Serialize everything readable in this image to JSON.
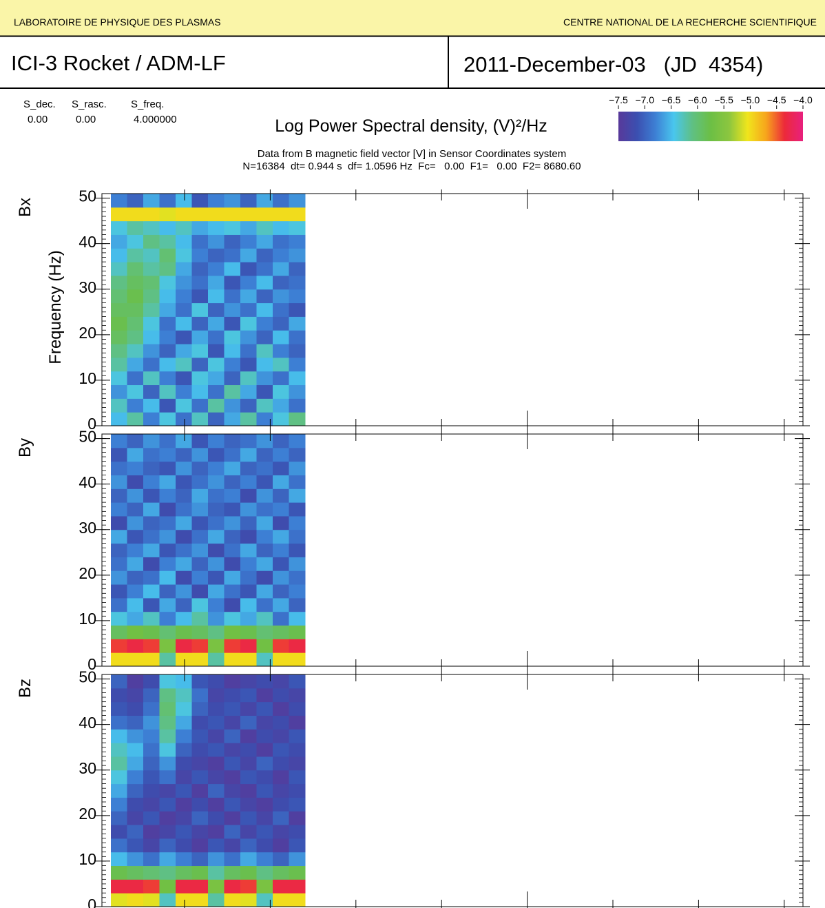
{
  "header": {
    "left": "LABORATOIRE DE PHYSIQUE DES PLASMAS",
    "right": "CENTRE NATIONAL DE LA RECHERCHE SCIENTIFIQUE",
    "title": "ICI-3 Rocket / ADM-LF",
    "date": "2011-December-03   (JD  4354)"
  },
  "params": [
    {
      "name": "S_dec.",
      "value": "0.00"
    },
    {
      "name": "S_rasc.",
      "value": "0.00"
    },
    {
      "name": "S_freq.",
      "value": "4.000000"
    }
  ],
  "colorbar": {
    "title": "Log Power Spectral density, (V)²/Hz",
    "clim": [
      -7.5,
      -4.0
    ],
    "ticks": [
      {
        "value": -7.5,
        "label": "−7.5"
      },
      {
        "value": -7.0,
        "label": "−7.0"
      },
      {
        "value": -6.5,
        "label": "−6.5"
      },
      {
        "value": -6.0,
        "label": "−6.0"
      },
      {
        "value": -5.5,
        "label": "−5.5"
      },
      {
        "value": -5.0,
        "label": "−5.0"
      },
      {
        "value": -4.5,
        "label": "−4.5"
      },
      {
        "value": -4.0,
        "label": "−4.0"
      }
    ],
    "colors": [
      "#58399a",
      "#3b4fb0",
      "#3d7fd4",
      "#49c6ee",
      "#5fc084",
      "#6cbf45",
      "#8cc63f",
      "#f0e51c",
      "#f7a51c",
      "#ec2a3a",
      "#e8207e"
    ]
  },
  "info": [
    "Data from B magnetic field vector [V] in Sensor Coordinates system",
    "N=16384  dt= 0.944 s  df= 1.0596 Hz  Fc=   0.00  F1=   0.00  F2= 8680.60"
  ],
  "chart_data": [
    {
      "type": "heatmap",
      "name": "Bx",
      "name_color": "#e8303a",
      "ylabel": "Frequency (Hz)",
      "ylim": [
        0,
        51
      ],
      "yticks": [
        0,
        10,
        20,
        30,
        40,
        50
      ],
      "ybins": [
        0,
        3,
        6,
        9,
        12,
        15,
        18,
        21,
        24,
        27,
        30,
        33,
        36,
        39,
        42,
        45,
        48,
        51
      ],
      "z": [
        [
          -6.5,
          -6.2,
          -6.8,
          -6.4,
          -6.9,
          -6.3,
          -7.0,
          -6.6,
          -6.2,
          -6.8,
          -6.4,
          -6.1
        ],
        [
          -6.3,
          -6.8,
          -6.5,
          -7.1,
          -6.4,
          -6.9,
          -6.2,
          -6.7,
          -7.0,
          -6.3,
          -6.6,
          -6.9
        ],
        [
          -6.7,
          -6.4,
          -7.0,
          -6.3,
          -6.8,
          -6.5,
          -6.9,
          -6.2,
          -6.6,
          -7.1,
          -6.4,
          -6.7
        ],
        [
          -6.4,
          -6.9,
          -6.3,
          -6.8,
          -7.1,
          -6.4,
          -6.6,
          -7.0,
          -6.3,
          -6.7,
          -6.9,
          -6.5
        ],
        [
          -6.2,
          -6.6,
          -6.9,
          -6.5,
          -6.3,
          -7.0,
          -6.4,
          -6.8,
          -7.1,
          -6.5,
          -6.3,
          -6.8
        ],
        [
          -6.1,
          -6.3,
          -6.7,
          -7.0,
          -6.6,
          -6.4,
          -7.1,
          -6.5,
          -6.9,
          -6.3,
          -6.8,
          -7.0
        ],
        [
          -5.9,
          -6.1,
          -6.5,
          -6.8,
          -7.1,
          -6.6,
          -6.9,
          -6.4,
          -6.7,
          -7.0,
          -6.5,
          -6.9
        ],
        [
          -5.8,
          -6.0,
          -6.4,
          -6.9,
          -6.5,
          -7.0,
          -6.6,
          -7.1,
          -6.4,
          -6.8,
          -7.0,
          -6.6
        ],
        [
          -5.9,
          -5.9,
          -6.2,
          -6.6,
          -6.9,
          -6.4,
          -7.0,
          -6.7,
          -6.9,
          -6.5,
          -6.9,
          -7.1
        ],
        [
          -6.0,
          -5.8,
          -6.1,
          -6.5,
          -6.8,
          -7.1,
          -6.5,
          -6.9,
          -6.6,
          -7.0,
          -6.7,
          -6.8
        ],
        [
          -6.1,
          -5.9,
          -6.0,
          -6.4,
          -6.7,
          -6.9,
          -6.6,
          -7.1,
          -6.8,
          -6.5,
          -7.0,
          -6.9
        ],
        [
          -6.3,
          -6.0,
          -6.2,
          -6.1,
          -6.6,
          -7.0,
          -6.8,
          -6.5,
          -7.1,
          -6.9,
          -6.6,
          -7.0
        ],
        [
          -6.5,
          -6.2,
          -6.3,
          -6.0,
          -6.4,
          -6.8,
          -7.0,
          -6.9,
          -6.6,
          -7.0,
          -6.8,
          -6.7
        ],
        [
          -6.6,
          -6.4,
          -6.1,
          -6.2,
          -6.5,
          -6.9,
          -6.7,
          -7.0,
          -6.8,
          -6.6,
          -6.9,
          -6.8
        ],
        [
          -6.4,
          -6.2,
          -6.3,
          -6.5,
          -6.3,
          -6.6,
          -6.5,
          -6.4,
          -6.6,
          -6.3,
          -6.5,
          -6.4
        ],
        [
          -5.0,
          -5.0,
          -5.0,
          -5.1,
          -5.0,
          -5.0,
          -5.0,
          -5.0,
          -5.0,
          -5.0,
          -5.0,
          -5.0
        ],
        [
          -6.8,
          -7.0,
          -6.6,
          -6.9,
          -6.5,
          -7.1,
          -6.8,
          -6.7,
          -7.0,
          -6.6,
          -6.9,
          -6.7
        ]
      ]
    },
    {
      "type": "heatmap",
      "name": "By",
      "name_color": "#6cbf45",
      "ylim": [
        0,
        51
      ],
      "yticks": [
        0,
        10,
        20,
        30,
        40,
        50
      ],
      "ybins": [
        0,
        3,
        6,
        9,
        12,
        15,
        18,
        21,
        24,
        27,
        30,
        33,
        36,
        39,
        42,
        45,
        48,
        51
      ],
      "z": [
        [
          -5.0,
          -5.0,
          -5.0,
          -6.2,
          -5.0,
          -5.0,
          -6.2,
          -5.0,
          -5.0,
          -6.3,
          -5.0,
          -5.0
        ],
        [
          -4.4,
          -4.3,
          -4.4,
          -5.6,
          -4.3,
          -4.4,
          -5.6,
          -4.4,
          -4.3,
          -5.7,
          -4.4,
          -4.3
        ],
        [
          -5.9,
          -5.7,
          -5.8,
          -6.0,
          -5.8,
          -5.9,
          -6.1,
          -5.7,
          -5.8,
          -6.0,
          -5.9,
          -5.8
        ],
        [
          -6.4,
          -6.6,
          -6.3,
          -6.8,
          -6.5,
          -6.2,
          -6.7,
          -6.4,
          -6.6,
          -6.3,
          -6.9,
          -6.5
        ],
        [
          -6.9,
          -6.5,
          -7.1,
          -6.6,
          -7.0,
          -6.4,
          -6.8,
          -7.2,
          -6.5,
          -6.9,
          -6.6,
          -7.0
        ],
        [
          -7.1,
          -6.8,
          -6.5,
          -7.0,
          -6.7,
          -7.2,
          -6.6,
          -6.9,
          -7.1,
          -6.6,
          -7.0,
          -6.8
        ],
        [
          -6.7,
          -7.0,
          -6.9,
          -6.5,
          -7.2,
          -6.8,
          -7.1,
          -6.6,
          -6.9,
          -7.2,
          -6.7,
          -6.9
        ],
        [
          -6.9,
          -6.6,
          -7.2,
          -6.8,
          -6.6,
          -7.0,
          -6.7,
          -7.2,
          -6.8,
          -6.6,
          -7.1,
          -6.7
        ],
        [
          -7.0,
          -6.8,
          -6.6,
          -7.1,
          -6.9,
          -6.7,
          -7.2,
          -6.9,
          -6.6,
          -7.0,
          -6.8,
          -7.1
        ],
        [
          -6.6,
          -7.1,
          -6.9,
          -6.7,
          -7.2,
          -6.9,
          -6.6,
          -7.0,
          -7.2,
          -6.8,
          -6.6,
          -6.9
        ],
        [
          -7.2,
          -6.7,
          -7.0,
          -6.9,
          -6.6,
          -7.1,
          -6.9,
          -6.7,
          -7.0,
          -6.6,
          -7.2,
          -6.8
        ],
        [
          -6.8,
          -7.0,
          -6.6,
          -7.2,
          -6.9,
          -6.7,
          -7.0,
          -7.1,
          -6.7,
          -6.9,
          -6.8,
          -7.1
        ],
        [
          -7.0,
          -6.7,
          -7.1,
          -6.8,
          -7.0,
          -6.6,
          -6.9,
          -6.8,
          -7.2,
          -6.7,
          -7.0,
          -6.6
        ],
        [
          -6.7,
          -7.2,
          -6.8,
          -6.6,
          -7.1,
          -6.9,
          -6.7,
          -7.0,
          -6.8,
          -7.1,
          -6.6,
          -6.9
        ],
        [
          -6.9,
          -6.8,
          -7.0,
          -7.1,
          -6.7,
          -7.0,
          -6.8,
          -6.6,
          -7.0,
          -6.9,
          -7.1,
          -6.7
        ],
        [
          -7.1,
          -6.6,
          -6.9,
          -6.8,
          -7.0,
          -6.7,
          -7.1,
          -6.9,
          -6.6,
          -7.0,
          -6.8,
          -7.0
        ],
        [
          -6.8,
          -7.0,
          -6.7,
          -6.9,
          -6.6,
          -7.1,
          -6.8,
          -7.0,
          -6.9,
          -6.7,
          -7.0,
          -6.8
        ]
      ]
    },
    {
      "type": "heatmap",
      "name": "Bz",
      "name_color": "#3b55b0",
      "ylim": [
        0,
        51
      ],
      "yticks": [
        0,
        10,
        20,
        30,
        40,
        50
      ],
      "ybins": [
        0,
        3,
        6,
        9,
        12,
        15,
        18,
        21,
        24,
        27,
        30,
        33,
        36,
        39,
        42,
        45,
        48,
        51
      ],
      "z": [
        [
          -5.1,
          -5.0,
          -5.1,
          -6.3,
          -5.0,
          -5.0,
          -6.2,
          -5.0,
          -5.1,
          -6.3,
          -5.0,
          -5.0
        ],
        [
          -4.3,
          -4.3,
          -4.4,
          -5.7,
          -4.3,
          -4.3,
          -5.6,
          -4.3,
          -4.4,
          -5.6,
          -4.3,
          -4.3
        ],
        [
          -5.8,
          -5.9,
          -6.0,
          -6.1,
          -5.9,
          -5.8,
          -6.2,
          -5.9,
          -5.8,
          -6.1,
          -5.9,
          -5.8
        ],
        [
          -6.5,
          -6.7,
          -6.9,
          -6.6,
          -6.8,
          -7.0,
          -6.7,
          -6.9,
          -6.6,
          -6.8,
          -7.0,
          -6.7
        ],
        [
          -6.9,
          -7.1,
          -7.3,
          -7.0,
          -7.2,
          -7.4,
          -7.1,
          -7.3,
          -7.0,
          -7.2,
          -7.4,
          -7.1
        ],
        [
          -7.2,
          -7.0,
          -7.4,
          -7.3,
          -7.1,
          -7.3,
          -7.4,
          -7.0,
          -7.3,
          -7.1,
          -7.3,
          -7.2
        ],
        [
          -7.0,
          -7.3,
          -7.1,
          -7.4,
          -7.3,
          -7.0,
          -7.2,
          -7.4,
          -7.1,
          -7.3,
          -7.0,
          -7.4
        ],
        [
          -6.8,
          -7.2,
          -7.3,
          -7.1,
          -7.4,
          -7.2,
          -7.4,
          -7.1,
          -7.3,
          -7.4,
          -7.2,
          -7.1
        ],
        [
          -6.6,
          -7.0,
          -7.2,
          -7.3,
          -7.1,
          -7.4,
          -7.0,
          -7.3,
          -7.4,
          -7.1,
          -7.3,
          -7.2
        ],
        [
          -6.4,
          -6.8,
          -7.1,
          -6.9,
          -7.3,
          -7.1,
          -7.3,
          -7.4,
          -7.1,
          -7.2,
          -7.4,
          -7.1
        ],
        [
          -6.2,
          -6.6,
          -7.0,
          -6.7,
          -7.2,
          -7.3,
          -7.4,
          -7.1,
          -7.3,
          -7.0,
          -7.2,
          -7.3
        ],
        [
          -6.3,
          -6.5,
          -6.9,
          -6.4,
          -7.0,
          -7.2,
          -7.1,
          -7.3,
          -7.2,
          -7.4,
          -7.1,
          -7.2
        ],
        [
          -6.5,
          -6.7,
          -6.8,
          -6.2,
          -6.8,
          -7.1,
          -7.3,
          -7.0,
          -7.4,
          -7.2,
          -7.3,
          -7.1
        ],
        [
          -6.9,
          -7.0,
          -6.7,
          -6.1,
          -6.6,
          -7.2,
          -7.1,
          -7.3,
          -7.0,
          -7.3,
          -7.2,
          -7.4
        ],
        [
          -7.1,
          -7.2,
          -6.9,
          -6.0,
          -6.4,
          -7.0,
          -7.2,
          -7.1,
          -7.3,
          -7.1,
          -7.4,
          -7.2
        ],
        [
          -7.2,
          -7.3,
          -7.0,
          -6.1,
          -6.3,
          -6.9,
          -7.3,
          -7.2,
          -7.1,
          -7.4,
          -7.2,
          -7.3
        ],
        [
          -7.0,
          -7.4,
          -7.2,
          -6.4,
          -6.5,
          -7.1,
          -7.2,
          -7.4,
          -7.3,
          -7.2,
          -7.3,
          -7.1
        ]
      ]
    }
  ]
}
